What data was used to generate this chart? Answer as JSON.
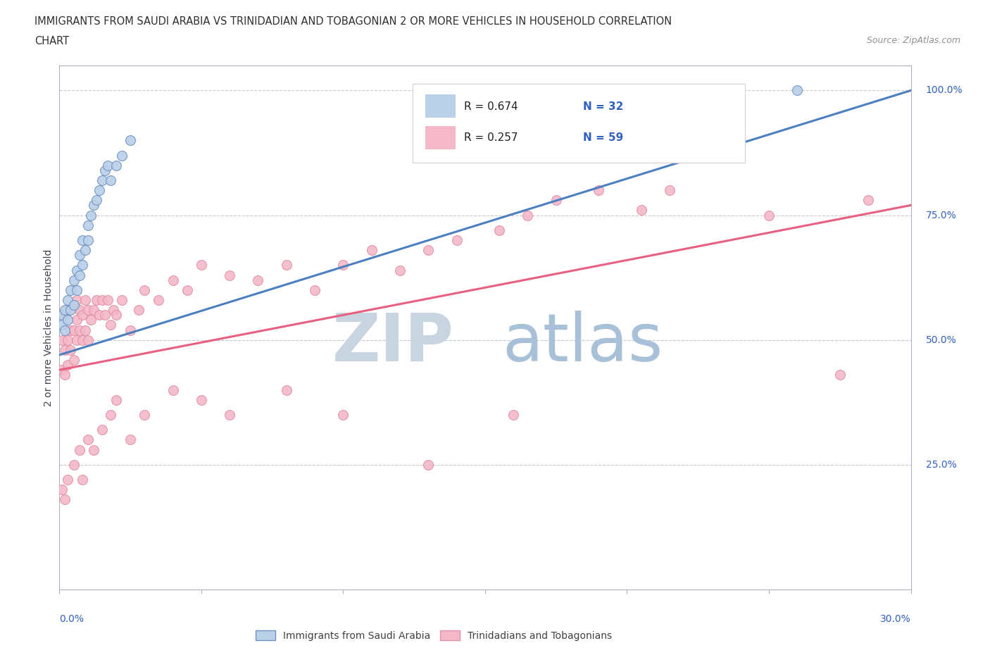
{
  "title_line1": "IMMIGRANTS FROM SAUDI ARABIA VS TRINIDADIAN AND TOBAGONIAN 2 OR MORE VEHICLES IN HOUSEHOLD CORRELATION",
  "title_line2": "CHART",
  "source": "Source: ZipAtlas.com",
  "legend_label1": "Immigrants from Saudi Arabia",
  "legend_label2": "Trinidadians and Tobagonians",
  "r1": 0.674,
  "n1": 32,
  "r2": 0.257,
  "n2": 59,
  "color_saudi": "#b8d0e8",
  "color_trini": "#f5b8c8",
  "color_saudi_line": "#4a80c0",
  "color_trini_line": "#e86080",
  "color_title": "#303030",
  "color_legend_text": "#3060c0",
  "color_source": "#909090",
  "color_watermark_zip": "#c8d4e0",
  "color_watermark_atlas": "#a0b8d0",
  "saudi_x": [
    0.001,
    0.001,
    0.002,
    0.002,
    0.003,
    0.003,
    0.004,
    0.004,
    0.005,
    0.005,
    0.006,
    0.006,
    0.007,
    0.007,
    0.008,
    0.008,
    0.009,
    0.01,
    0.01,
    0.011,
    0.012,
    0.013,
    0.014,
    0.015,
    0.016,
    0.017,
    0.018,
    0.02,
    0.022,
    0.025,
    0.21,
    0.26
  ],
  "saudi_y": [
    0.53,
    0.55,
    0.52,
    0.56,
    0.54,
    0.58,
    0.56,
    0.6,
    0.57,
    0.62,
    0.6,
    0.64,
    0.63,
    0.67,
    0.65,
    0.7,
    0.68,
    0.7,
    0.73,
    0.75,
    0.77,
    0.78,
    0.8,
    0.82,
    0.84,
    0.85,
    0.82,
    0.85,
    0.87,
    0.9,
    1.0,
    1.0
  ],
  "trini_x": [
    0.001,
    0.001,
    0.002,
    0.002,
    0.002,
    0.003,
    0.003,
    0.003,
    0.004,
    0.004,
    0.005,
    0.005,
    0.006,
    0.006,
    0.006,
    0.007,
    0.007,
    0.008,
    0.008,
    0.009,
    0.009,
    0.01,
    0.01,
    0.011,
    0.012,
    0.013,
    0.014,
    0.015,
    0.016,
    0.017,
    0.018,
    0.019,
    0.02,
    0.022,
    0.025,
    0.028,
    0.03,
    0.035,
    0.04,
    0.045,
    0.05,
    0.06,
    0.07,
    0.08,
    0.09,
    0.1,
    0.11,
    0.12,
    0.13,
    0.14,
    0.155,
    0.165,
    0.175,
    0.19,
    0.205,
    0.215,
    0.25,
    0.275,
    0.285
  ],
  "trini_y": [
    0.44,
    0.5,
    0.43,
    0.48,
    0.55,
    0.45,
    0.5,
    0.56,
    0.48,
    0.52,
    0.46,
    0.52,
    0.5,
    0.54,
    0.58,
    0.52,
    0.56,
    0.5,
    0.55,
    0.52,
    0.58,
    0.5,
    0.56,
    0.54,
    0.56,
    0.58,
    0.55,
    0.58,
    0.55,
    0.58,
    0.53,
    0.56,
    0.55,
    0.58,
    0.52,
    0.56,
    0.6,
    0.58,
    0.62,
    0.6,
    0.65,
    0.63,
    0.62,
    0.65,
    0.6,
    0.65,
    0.68,
    0.64,
    0.68,
    0.7,
    0.72,
    0.75,
    0.78,
    0.8,
    0.76,
    0.8,
    0.75,
    0.43,
    0.78
  ],
  "trini_x_extra": [
    0.001,
    0.002,
    0.003,
    0.005,
    0.007,
    0.008,
    0.01,
    0.012,
    0.015,
    0.018,
    0.02,
    0.025,
    0.03,
    0.04,
    0.05,
    0.06,
    0.08,
    0.1,
    0.13,
    0.16
  ],
  "trini_y_extra": [
    0.2,
    0.18,
    0.22,
    0.25,
    0.28,
    0.22,
    0.3,
    0.28,
    0.32,
    0.35,
    0.38,
    0.3,
    0.35,
    0.4,
    0.38,
    0.35,
    0.4,
    0.35,
    0.25,
    0.35
  ],
  "xmin": 0.0,
  "xmax": 0.3,
  "ymin": 0.0,
  "ymax": 1.05,
  "figwidth": 14.06,
  "figheight": 9.3,
  "dpi": 100,
  "saudi_line_x0": 0.0,
  "saudi_line_y0": 0.47,
  "saudi_line_x1": 0.3,
  "saudi_line_y1": 1.0,
  "trini_line_x0": 0.0,
  "trini_line_y0": 0.44,
  "trini_line_x1": 0.3,
  "trini_line_y1": 0.77
}
